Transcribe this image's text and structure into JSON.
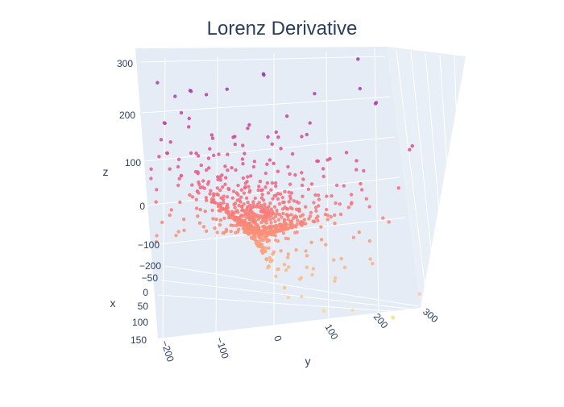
{
  "chart_data": {
    "type": "scatter3d",
    "title": "Lorenz Derivative",
    "xlabel": "x",
    "ylabel": "y",
    "zlabel": "z",
    "x_ticks": [
      "−50",
      "0",
      "50",
      "100",
      "150"
    ],
    "y_ticks": [
      "−200",
      "−100",
      "0",
      "100",
      "200",
      "300"
    ],
    "z_ticks": [
      "−100",
      "0",
      "100",
      "200",
      "300"
    ],
    "xlim": [
      -50,
      150
    ],
    "ylim": [
      -200,
      300
    ],
    "zlim": [
      -100,
      300
    ],
    "colorscale": [
      "#f7e3a5",
      "#f9b583",
      "#f77b74",
      "#e0508f",
      "#b53da9",
      "#7b3ab8"
    ],
    "background": "#e5ecf6",
    "grid_color": "#ffffff",
    "marker": "circle",
    "legend": "none"
  }
}
